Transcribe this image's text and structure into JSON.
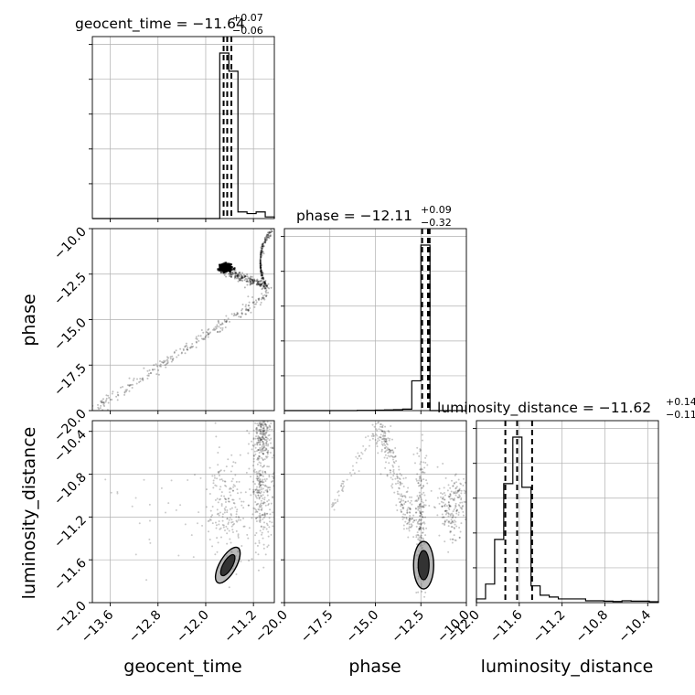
{
  "chart_data": {
    "type": "corner",
    "parameters": [
      "geocent_time",
      "phase",
      "luminosity_distance"
    ],
    "ranges": {
      "geocent_time": [
        -13.9,
        -10.85
      ],
      "phase": [
        -20.0,
        -10.0
      ],
      "luminosity_distance": [
        -12.0,
        -10.3
      ]
    },
    "grid": true,
    "titles": [
      {
        "param": "geocent_time",
        "main": "geocent_time = −11.64",
        "sup": "+0.07",
        "sub": "−0.06"
      },
      {
        "param": "phase",
        "main": "phase = −12.11",
        "sup": "+0.09",
        "sub": "−0.32"
      },
      {
        "param": "luminosity_distance",
        "main": "luminosity_distance = −11.62",
        "sup": "+0.14",
        "sub": "−0.11"
      }
    ],
    "quantiles": {
      "geocent_time": [
        -11.7,
        -11.64,
        -11.57
      ],
      "phase": [
        -12.43,
        -12.11,
        -12.02
      ],
      "luminosity_distance": [
        -11.73,
        -11.62,
        -11.48
      ]
    },
    "ticks": {
      "geocent_time": [
        -13.6,
        -12.8,
        -12.0,
        -11.2
      ],
      "phase": [
        -20.0,
        -17.5,
        -15.0,
        -12.5,
        -10.0
      ],
      "luminosity_distance": [
        -12.0,
        -11.6,
        -11.2,
        -10.8,
        -10.4
      ]
    },
    "tick_labels": {
      "geocent_time": [
        "−13.6",
        "−12.8",
        "−12.0",
        "−11.2"
      ],
      "phase": [
        "−20.0",
        "−17.5",
        "−15.0",
        "−12.5",
        "−10.0"
      ],
      "luminosity_distance": [
        "−12.0",
        "−11.6",
        "−11.2",
        "−10.8",
        "−10.4"
      ]
    },
    "axis_labels": {
      "geocent_time": "geocent_time",
      "phase": "phase",
      "luminosity_distance": "luminosity_distance"
    },
    "histograms": {
      "geocent_time": {
        "edges": [
          -13.9,
          -13.7475,
          -13.595,
          -13.4425,
          -13.29,
          -13.1375,
          -12.985,
          -12.8325,
          -12.68,
          -12.5275,
          -12.375,
          -12.2225,
          -12.07,
          -11.9175,
          -11.765,
          -11.6125,
          -11.46,
          -11.3075,
          -11.155,
          -11.0025,
          -10.85
        ],
        "counts": [
          0,
          0,
          0,
          0,
          0,
          0,
          0,
          0,
          0,
          0,
          0,
          0,
          0,
          0,
          1.0,
          0.89,
          0.04,
          0.03,
          0.04,
          0.01
        ]
      },
      "phase": {
        "edges": [
          -20.0,
          -19.5,
          -19.0,
          -18.5,
          -18.0,
          -17.5,
          -17.0,
          -16.5,
          -16.0,
          -15.5,
          -15.0,
          -14.5,
          -14.0,
          -13.5,
          -13.0,
          -12.5,
          -12.0,
          -11.5,
          -11.0,
          -10.5,
          -10.0
        ],
        "counts": [
          0,
          0,
          0,
          0,
          0,
          0,
          0,
          0,
          0.0015,
          0.0015,
          0.003,
          0.004,
          0.006,
          0.009,
          0.18,
          1.0,
          0.0,
          0.0,
          0.0,
          0.0
        ]
      },
      "luminosity_distance": {
        "edges": [
          -12.0,
          -11.915,
          -11.83,
          -11.745,
          -11.66,
          -11.575,
          -11.49,
          -11.405,
          -11.32,
          -11.235,
          -11.15,
          -11.065,
          -10.98,
          -10.895,
          -10.81,
          -10.725,
          -10.64,
          -10.555,
          -10.47,
          -10.385,
          -10.3
        ],
        "counts": [
          0.02,
          0.1,
          0.34,
          0.64,
          0.89,
          0.62,
          0.09,
          0.04,
          0.03,
          0.02,
          0.02,
          0.02,
          0.01,
          0.01,
          0.008,
          0.006,
          0.01,
          0.008,
          0.008,
          0.005
        ]
      }
    }
  }
}
